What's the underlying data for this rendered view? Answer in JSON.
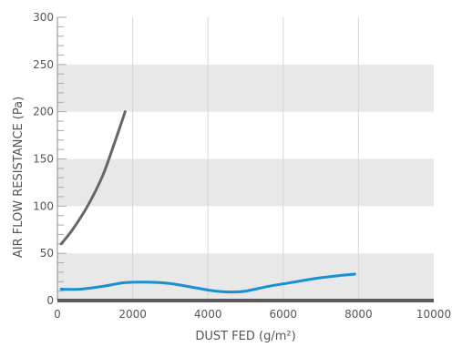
{
  "chart_data": {
    "type": "line",
    "title": "",
    "xlabel": "DUST FED (g/m²)",
    "ylabel": "AIR FLOW RESISTANCE (Pa)",
    "xlim": [
      0,
      10000
    ],
    "ylim": [
      0,
      300
    ],
    "x_ticks": [
      "0",
      "2000",
      "4000",
      "6000",
      "8000",
      "10000"
    ],
    "y_ticks": [
      "0",
      "50",
      "100",
      "150",
      "200",
      "250",
      "300"
    ],
    "grid": true,
    "band_color": "#e8e8e8",
    "series": [
      {
        "color": "#666666",
        "x": [
          100,
          400,
          800,
          1200,
          1500,
          1800
        ],
        "y": [
          60,
          75,
          100,
          132,
          165,
          200
        ]
      },
      {
        "color": "#1a8fd1",
        "x": [
          100,
          600,
          1200,
          1800,
          2400,
          3000,
          3600,
          4200,
          4600,
          5000,
          5600,
          6200,
          6800,
          7400,
          7900
        ],
        "y": [
          12,
          12,
          15,
          19,
          19.5,
          18,
          14,
          10,
          9,
          10,
          15,
          19,
          23,
          26,
          28
        ]
      }
    ]
  }
}
